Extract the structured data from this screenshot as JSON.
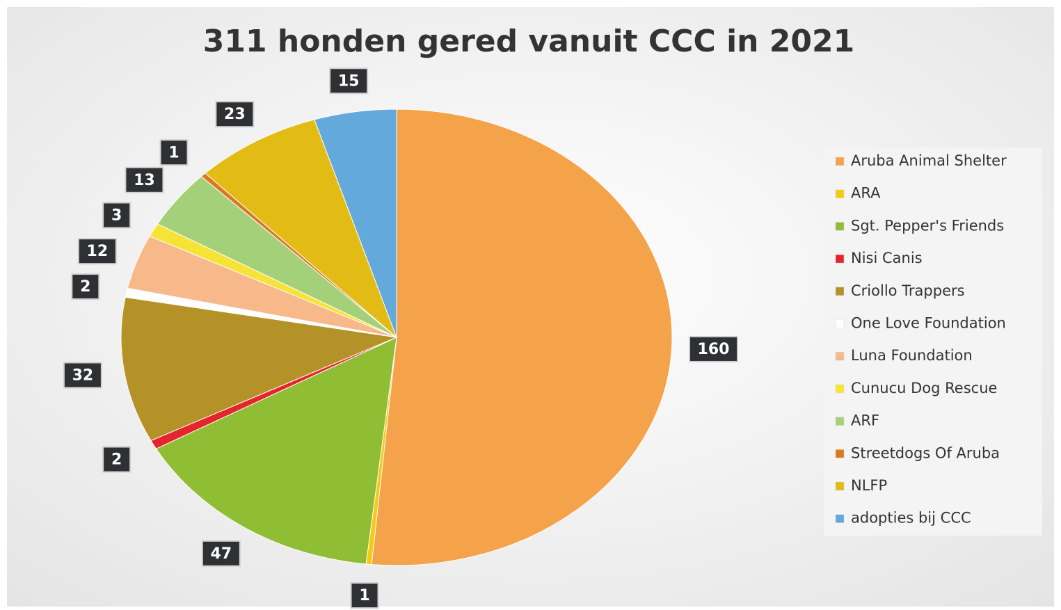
{
  "chart_data": {
    "type": "pie",
    "title": "311 honden gered vanuit CCC in 2021",
    "categories": [
      "Aruba Animal Shelter",
      "ARA",
      "Sgt. Pepper's Friends",
      "Nisi Canis",
      "Criollo Trappers",
      "One Love Foundation",
      "Luna Foundation",
      "Cunucu Dog Rescue",
      "ARF",
      "Streetdogs Of Aruba",
      "NLFP",
      "adopties bij CCC"
    ],
    "values": [
      160,
      1,
      47,
      2,
      32,
      2,
      12,
      3,
      13,
      1,
      23,
      15
    ],
    "colors": [
      "#f4a34b",
      "#f6c915",
      "#8fbd34",
      "#e3262b",
      "#b49227",
      "#ffffff",
      "#f8b98a",
      "#f7e335",
      "#a5d07a",
      "#d97a1e",
      "#e2bb15",
      "#64a9dc"
    ],
    "legend": "right"
  }
}
